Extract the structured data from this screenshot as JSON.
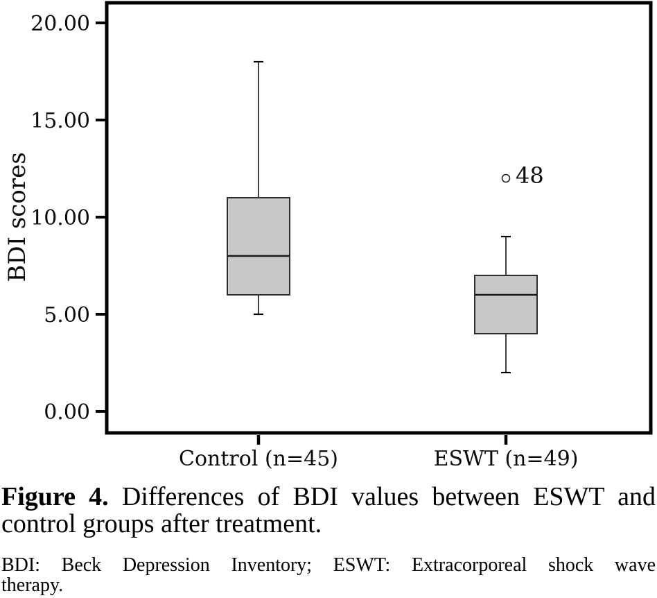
{
  "figure": {
    "caption_label": "Figure 4.",
    "caption_rest": "Differences of BDI values between ESWT and",
    "caption_line2": "control groups after treatment.",
    "footnote_line1": "BDI: Beck Depression Inventory; ESWT: Extracorporeal shock wave",
    "footnote_line2": "therapy."
  },
  "chart_data": {
    "type": "boxplot",
    "title": "",
    "xlabel": "",
    "ylabel": "BDI scores",
    "ylim": [
      0,
      20
    ],
    "grid": false,
    "legend": "none",
    "yticks": [
      {
        "value": 0,
        "label": "0.00"
      },
      {
        "value": 5,
        "label": "5.00"
      },
      {
        "value": 10,
        "label": "10.00"
      },
      {
        "value": 15,
        "label": "15.00"
      },
      {
        "value": 20,
        "label": "20.00"
      }
    ],
    "categories": [
      "Control (n=45)",
      "ESWT (n=49)"
    ],
    "series": [
      {
        "name": "Control (n=45)",
        "min": 5,
        "q1": 6,
        "median": 8,
        "q3": 11,
        "max": 18,
        "outliers": []
      },
      {
        "name": "ESWT (n=49)",
        "min": 2,
        "q1": 4,
        "median": 6,
        "q3": 7,
        "max": 9,
        "outliers": [
          {
            "value": 12,
            "label": "48"
          }
        ]
      }
    ],
    "colors": {
      "box_fill": "#c8c8ca",
      "box_stroke": "#2d2d2d",
      "frame": "#000000",
      "whisker": "#000000",
      "background": "#ffffff"
    }
  }
}
